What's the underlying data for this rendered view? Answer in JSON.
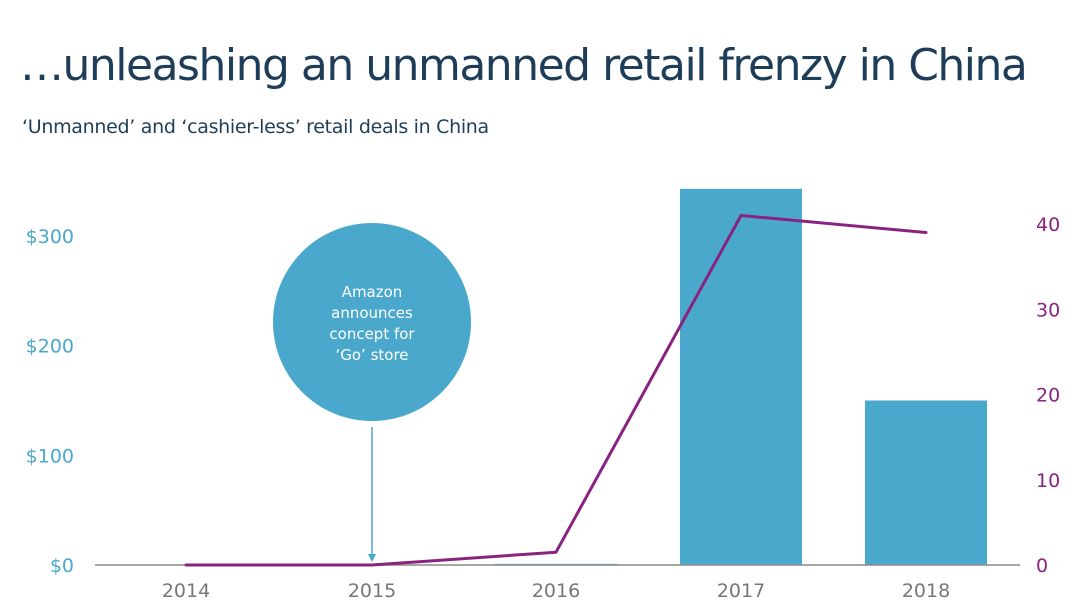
{
  "title": "…unleashing an unmanned retail frenzy in China",
  "subtitle": "‘Unmanned’ and ‘cashier-less’ retail deals in China",
  "colors": {
    "title": "#1e3d59",
    "bar": "#4aa8cc",
    "line": "#8a237f",
    "left_axis_text": "#4aa8cc",
    "right_axis_text": "#8a237f",
    "x_axis_text": "#777777",
    "baseline": "#8a8a8a",
    "callout_fill": "#4aa8cc",
    "callout_text": "#ffffff"
  },
  "chart_data": {
    "type": "bar+line",
    "categories": [
      "2014",
      "2015",
      "2016",
      "2017",
      "2018"
    ],
    "series": [
      {
        "axis": "left",
        "type": "bar",
        "values": [
          0,
          0,
          1,
          343,
          150
        ]
      },
      {
        "axis": "right",
        "type": "line",
        "values": [
          0,
          0,
          1.5,
          41,
          39
        ]
      }
    ],
    "y_left": {
      "ylim": [
        0,
        345
      ],
      "ticks": [
        0,
        100,
        200,
        300
      ],
      "tick_labels": [
        "$0",
        "$100",
        "$200",
        "$300"
      ]
    },
    "y_right": {
      "ylim": [
        0,
        40.5
      ],
      "ticks": [
        0,
        10,
        20,
        30,
        40
      ],
      "tick_labels": [
        "0",
        "10",
        "20",
        "30",
        "40"
      ]
    },
    "grid": false,
    "annotation": {
      "category": "2015",
      "lines": [
        "Amazon",
        "announces",
        "concept for",
        "‘Go’ store"
      ],
      "icon": "down-arrow-icon"
    }
  }
}
